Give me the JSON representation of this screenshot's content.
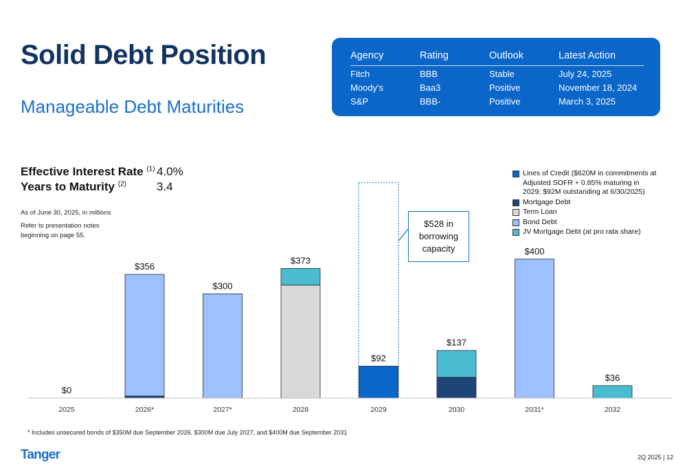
{
  "title": "Solid Debt Position",
  "subtitle": "Manageable Debt Maturities",
  "ratings_table": {
    "headers": [
      "Agency",
      "Rating",
      "Outlook",
      "Latest Action"
    ],
    "rows": [
      [
        "Fitch",
        "BBB",
        "Stable",
        "July 24, 2025"
      ],
      [
        "Moody's",
        "Baa3",
        "Positive",
        "November 18, 2024"
      ],
      [
        "S&P",
        "BBB-",
        "Positive",
        "March 3, 2025"
      ]
    ]
  },
  "metrics": {
    "interest_label": "Effective Interest Rate",
    "interest_note": "(1)",
    "interest_value": "4.0%",
    "maturity_label": "Years to Maturity",
    "maturity_note": "(2)",
    "maturity_value": "3.4"
  },
  "notes": {
    "as_of": "As of June 30, 2025, in millions",
    "refer": "Refer to presentation notes beginning on page 55."
  },
  "callout": "$528 in borrowing capacity",
  "footnote": "*   Includes unsecured bonds of $350M due September 2026, $300M due July 2027, and $400M due September 2031",
  "logo": "Tanger",
  "page_label": "2Q 2025   |   12",
  "colors": {
    "lines_of_credit": "#0a66c9",
    "mortgage_debt": "#1f4476",
    "term_loan": "#d9d9d9",
    "bond_debt": "#9ec0ff",
    "jv_mortgage": "#4bbbd1",
    "ratings_bg": "#0a66c9",
    "title": "#12335f",
    "subtitle": "#1b6fc7"
  },
  "chart_data": {
    "type": "bar",
    "stacked": true,
    "categories": [
      "2025",
      "2026*",
      "2027*",
      "2028",
      "2029",
      "2030",
      "2031*",
      "2032"
    ],
    "series": [
      {
        "name": "Lines of Credit ($620M in commitments at Adjusted SOFR + 0.85% maturing in 2029; $92M outstanding at 6/30/2025)",
        "key": "lines_of_credit",
        "values": [
          0,
          0,
          0,
          0,
          92,
          0,
          0,
          0
        ]
      },
      {
        "name": "Mortgage Debt",
        "key": "mortgage_debt",
        "values": [
          0,
          6,
          0,
          0,
          0,
          60,
          0,
          0
        ]
      },
      {
        "name": "Term Loan",
        "key": "term_loan",
        "values": [
          0,
          0,
          0,
          325,
          0,
          0,
          0,
          0
        ]
      },
      {
        "name": "Bond Debt",
        "key": "bond_debt",
        "values": [
          0,
          350,
          300,
          0,
          0,
          0,
          400,
          0
        ]
      },
      {
        "name": "JV Mortgage Debt (at pro rata share)",
        "key": "jv_mortgage",
        "values": [
          0,
          0,
          0,
          48,
          0,
          77,
          0,
          36
        ]
      }
    ],
    "totals": [
      0,
      356,
      300,
      373,
      92,
      137,
      400,
      36
    ],
    "data_labels": [
      "$0",
      "$356",
      "$300",
      "$373",
      "$92",
      "$137",
      "$400",
      "$36"
    ],
    "available_capacity": {
      "category": "2029",
      "value": 528
    },
    "ylim": [
      0,
      660
    ],
    "legend_position": "top-right",
    "grid": false
  }
}
